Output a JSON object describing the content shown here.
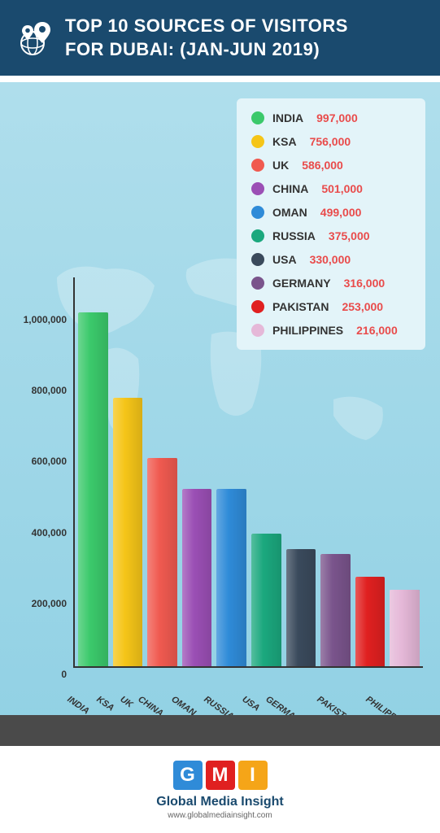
{
  "header": {
    "title_line1": "TOP 10 SOURCES OF VISITORS",
    "title_line2": "FOR DUBAI: (JAN-JUN 2019)"
  },
  "chart": {
    "type": "bar",
    "ylim": [
      0,
      1100000
    ],
    "yticks": [
      0,
      200000,
      400000,
      600000,
      800000,
      1000000
    ],
    "ytick_labels": [
      "0",
      "200,000",
      "400,000",
      "600,000",
      "800,000",
      "1,000,000"
    ],
    "axis_color": "#333333",
    "background_gradient": [
      "#b3e0ed",
      "#8dcfe3"
    ],
    "legend_bg": "#e3f4f9",
    "value_color": "#e94b4b",
    "label_fontsize": 11,
    "data": [
      {
        "label": "INDIA",
        "value": 997000,
        "value_display": "997,000",
        "color": "#3bc96b"
      },
      {
        "label": "KSA",
        "value": 756000,
        "value_display": "756,000",
        "color": "#f5c518"
      },
      {
        "label": "UK",
        "value": 586000,
        "value_display": "586,000",
        "color": "#f05a50"
      },
      {
        "label": "CHINA",
        "value": 501000,
        "value_display": "501,000",
        "color": "#9b4fb5"
      },
      {
        "label": "OMAN",
        "value": 499000,
        "value_display": "499,000",
        "color": "#2f8bd8"
      },
      {
        "label": "RUSSIA",
        "value": 375000,
        "value_display": "375,000",
        "color": "#1ba87e"
      },
      {
        "label": "USA",
        "value": 330000,
        "value_display": "330,000",
        "color": "#3a4a5c"
      },
      {
        "label": "GERMANY",
        "value": 316000,
        "value_display": "316,000",
        "color": "#7a548c"
      },
      {
        "label": "PAKISTAN",
        "value": 253000,
        "value_display": "253,000",
        "color": "#e02020"
      },
      {
        "label": "PHILIPPINES",
        "value": 216000,
        "value_display": "216,000",
        "color": "#e5b8d8"
      }
    ]
  },
  "footer": {
    "logo_letters": [
      "G",
      "M",
      "I"
    ],
    "logo_colors": [
      "#2f8bd8",
      "#e02020",
      "#f5a518"
    ],
    "brand": "Global Media Insight",
    "url": "www.globalmediainsight.com"
  }
}
